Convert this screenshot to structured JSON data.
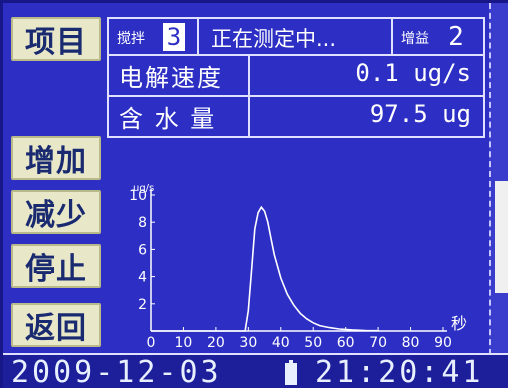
{
  "softkeys": {
    "item": "项目",
    "add": "增加",
    "reduce": "减少",
    "stop": "停止",
    "back": "返回"
  },
  "header": {
    "stir_label": "搅拌",
    "stir_level": "3",
    "status": "正在测定中...",
    "gain_label": "增益",
    "gain_level": "2"
  },
  "readings": {
    "rate_label": "电解速度",
    "rate_value": "0.1 ug/s",
    "water_label": "含 水 量",
    "water_value": "97.5 ug"
  },
  "chart_data": {
    "type": "line",
    "ylabel": "ug/s",
    "xlabel": "秒",
    "xlim": [
      0,
      90
    ],
    "ylim": [
      0,
      10
    ],
    "x_ticks": [
      "0",
      "10",
      "20",
      "30",
      "40",
      "50",
      "60",
      "70",
      "80",
      "90"
    ],
    "y_ticks": [
      "2",
      "4",
      "6",
      "8",
      "10"
    ],
    "series": [
      {
        "x": [
          0,
          29,
          30,
          31,
          32,
          33,
          34,
          35,
          36,
          37,
          38,
          40,
          42,
          44,
          46,
          48,
          50,
          52,
          55,
          58,
          62,
          66,
          70
        ],
        "y": [
          0,
          0,
          1.5,
          4.5,
          7.5,
          8.7,
          9.1,
          8.8,
          8.0,
          6.8,
          5.6,
          3.9,
          2.7,
          1.9,
          1.3,
          0.9,
          0.6,
          0.4,
          0.25,
          0.15,
          0.08,
          0.04,
          0.02
        ]
      }
    ]
  },
  "footer": {
    "date": "2009-12-03",
    "time": "21:20:41"
  }
}
